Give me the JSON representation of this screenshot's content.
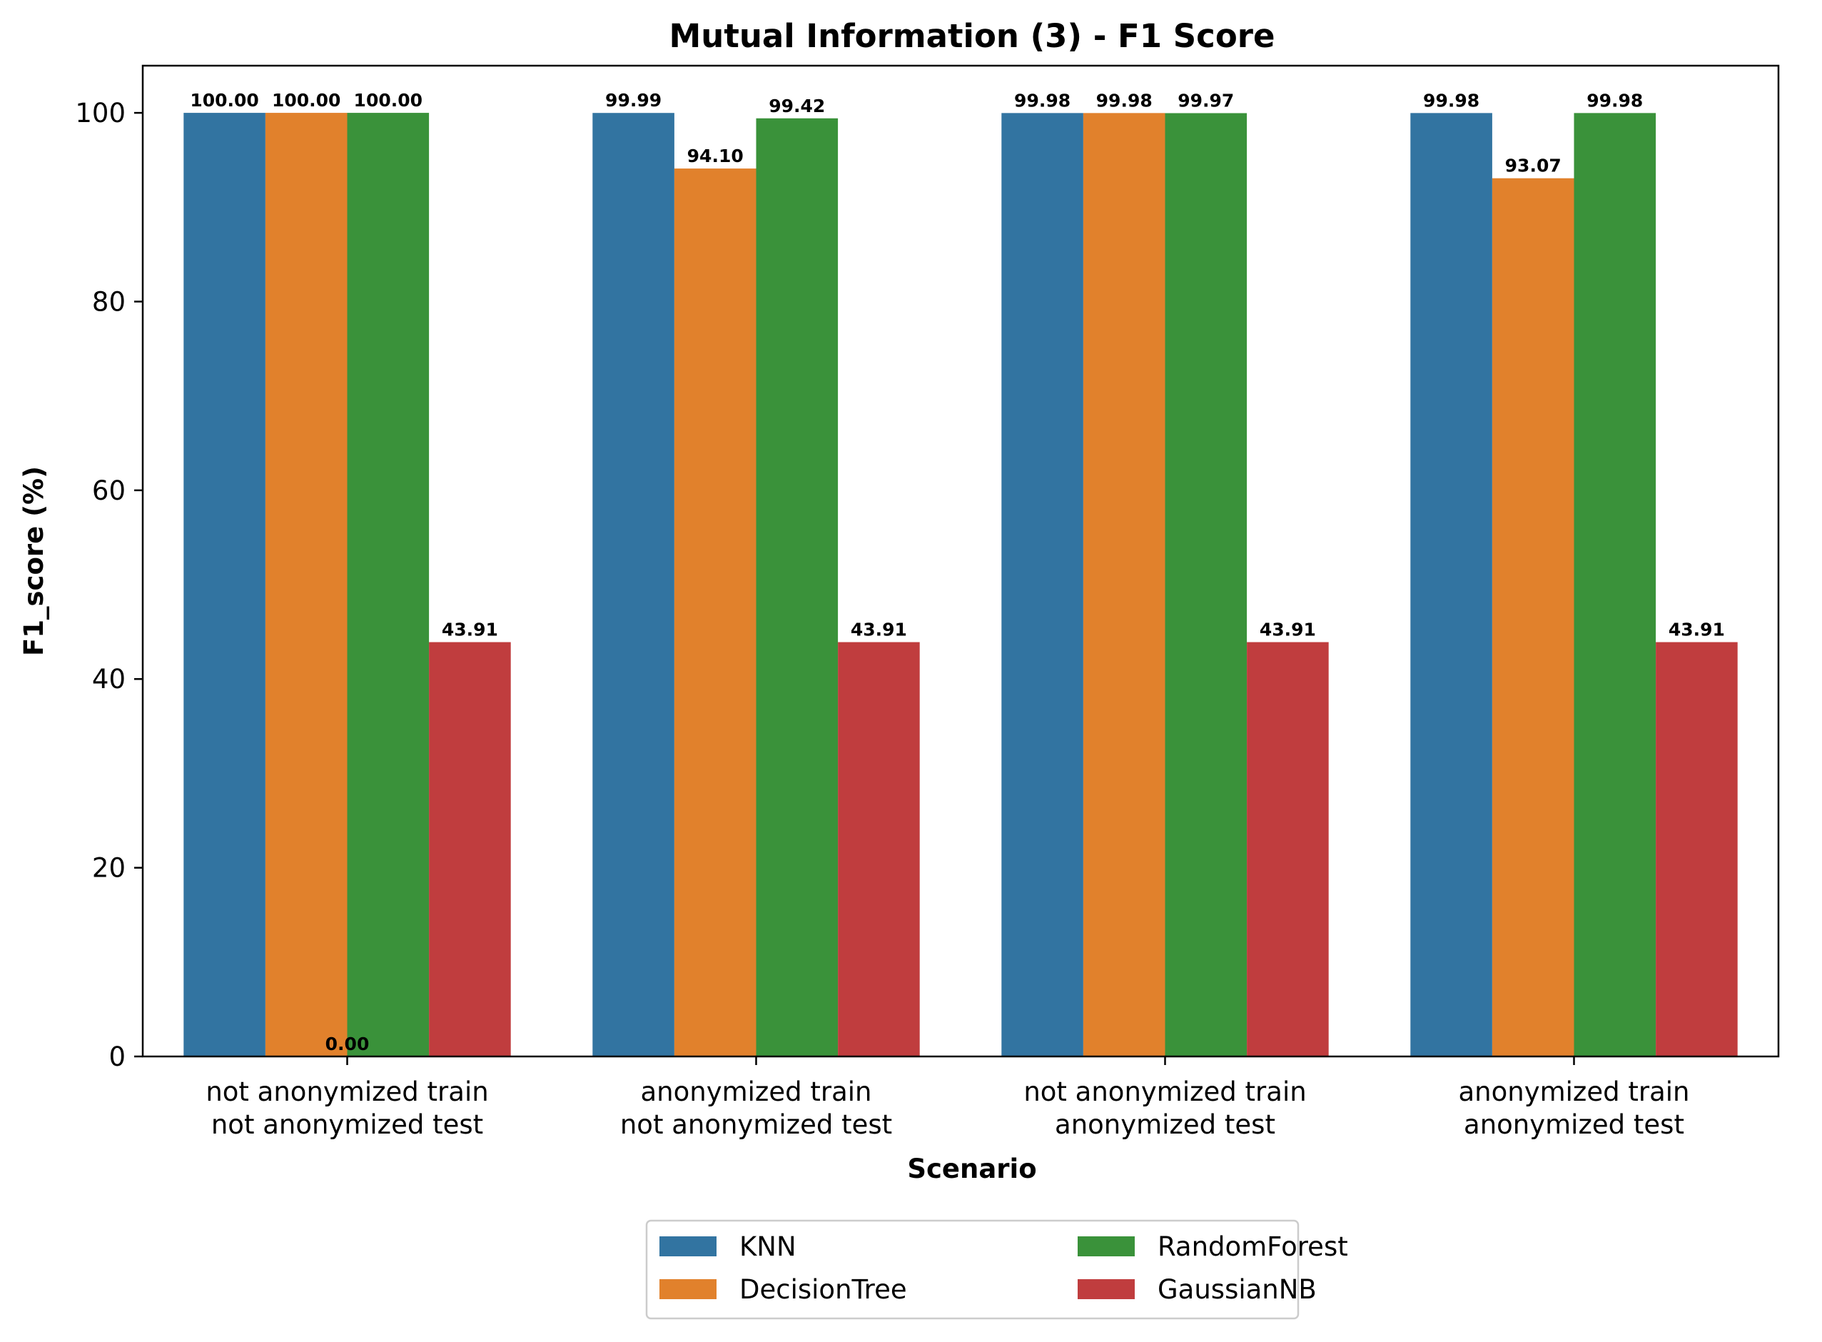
{
  "chart_data": {
    "type": "bar",
    "title": "Mutual Information (3) - F1 Score",
    "xlabel": "Scenario",
    "ylabel": "F1_score (%)",
    "ylim": [
      0,
      105
    ],
    "yticks": [
      0,
      20,
      40,
      60,
      80,
      100
    ],
    "categories": [
      [
        "not anonymized train",
        "not anonymized test"
      ],
      [
        "anonymized train",
        "not anonymized test"
      ],
      [
        "not anonymized train",
        "anonymized test"
      ],
      [
        "anonymized train",
        "anonymized test"
      ]
    ],
    "series": [
      {
        "name": "KNN",
        "color": "#3274a1",
        "values": [
          100.0,
          99.99,
          99.98,
          99.98
        ],
        "labels": [
          "100.00",
          "99.99",
          "99.98",
          "99.98"
        ]
      },
      {
        "name": "DecisionTree",
        "color": "#e1812c",
        "values": [
          100.0,
          94.1,
          99.98,
          93.07
        ],
        "labels": [
          "100.00",
          "94.10",
          "99.98",
          "93.07"
        ]
      },
      {
        "name": "RandomForest",
        "color": "#3a923a",
        "values": [
          100.0,
          99.42,
          99.97,
          99.98
        ],
        "labels": [
          "100.00",
          "99.42",
          "99.97",
          "99.98"
        ]
      },
      {
        "name": "GaussianNB",
        "color": "#c03d3e",
        "values": [
          43.91,
          43.91,
          43.91,
          43.91
        ],
        "labels": [
          "43.91",
          "43.91",
          "43.91",
          "43.91"
        ]
      }
    ],
    "extra_annotations": [
      {
        "text": "0.00",
        "category_index": 0,
        "y": 0
      }
    ],
    "grid": false,
    "legend": {
      "position": "bottom-center",
      "columns": 2
    }
  }
}
